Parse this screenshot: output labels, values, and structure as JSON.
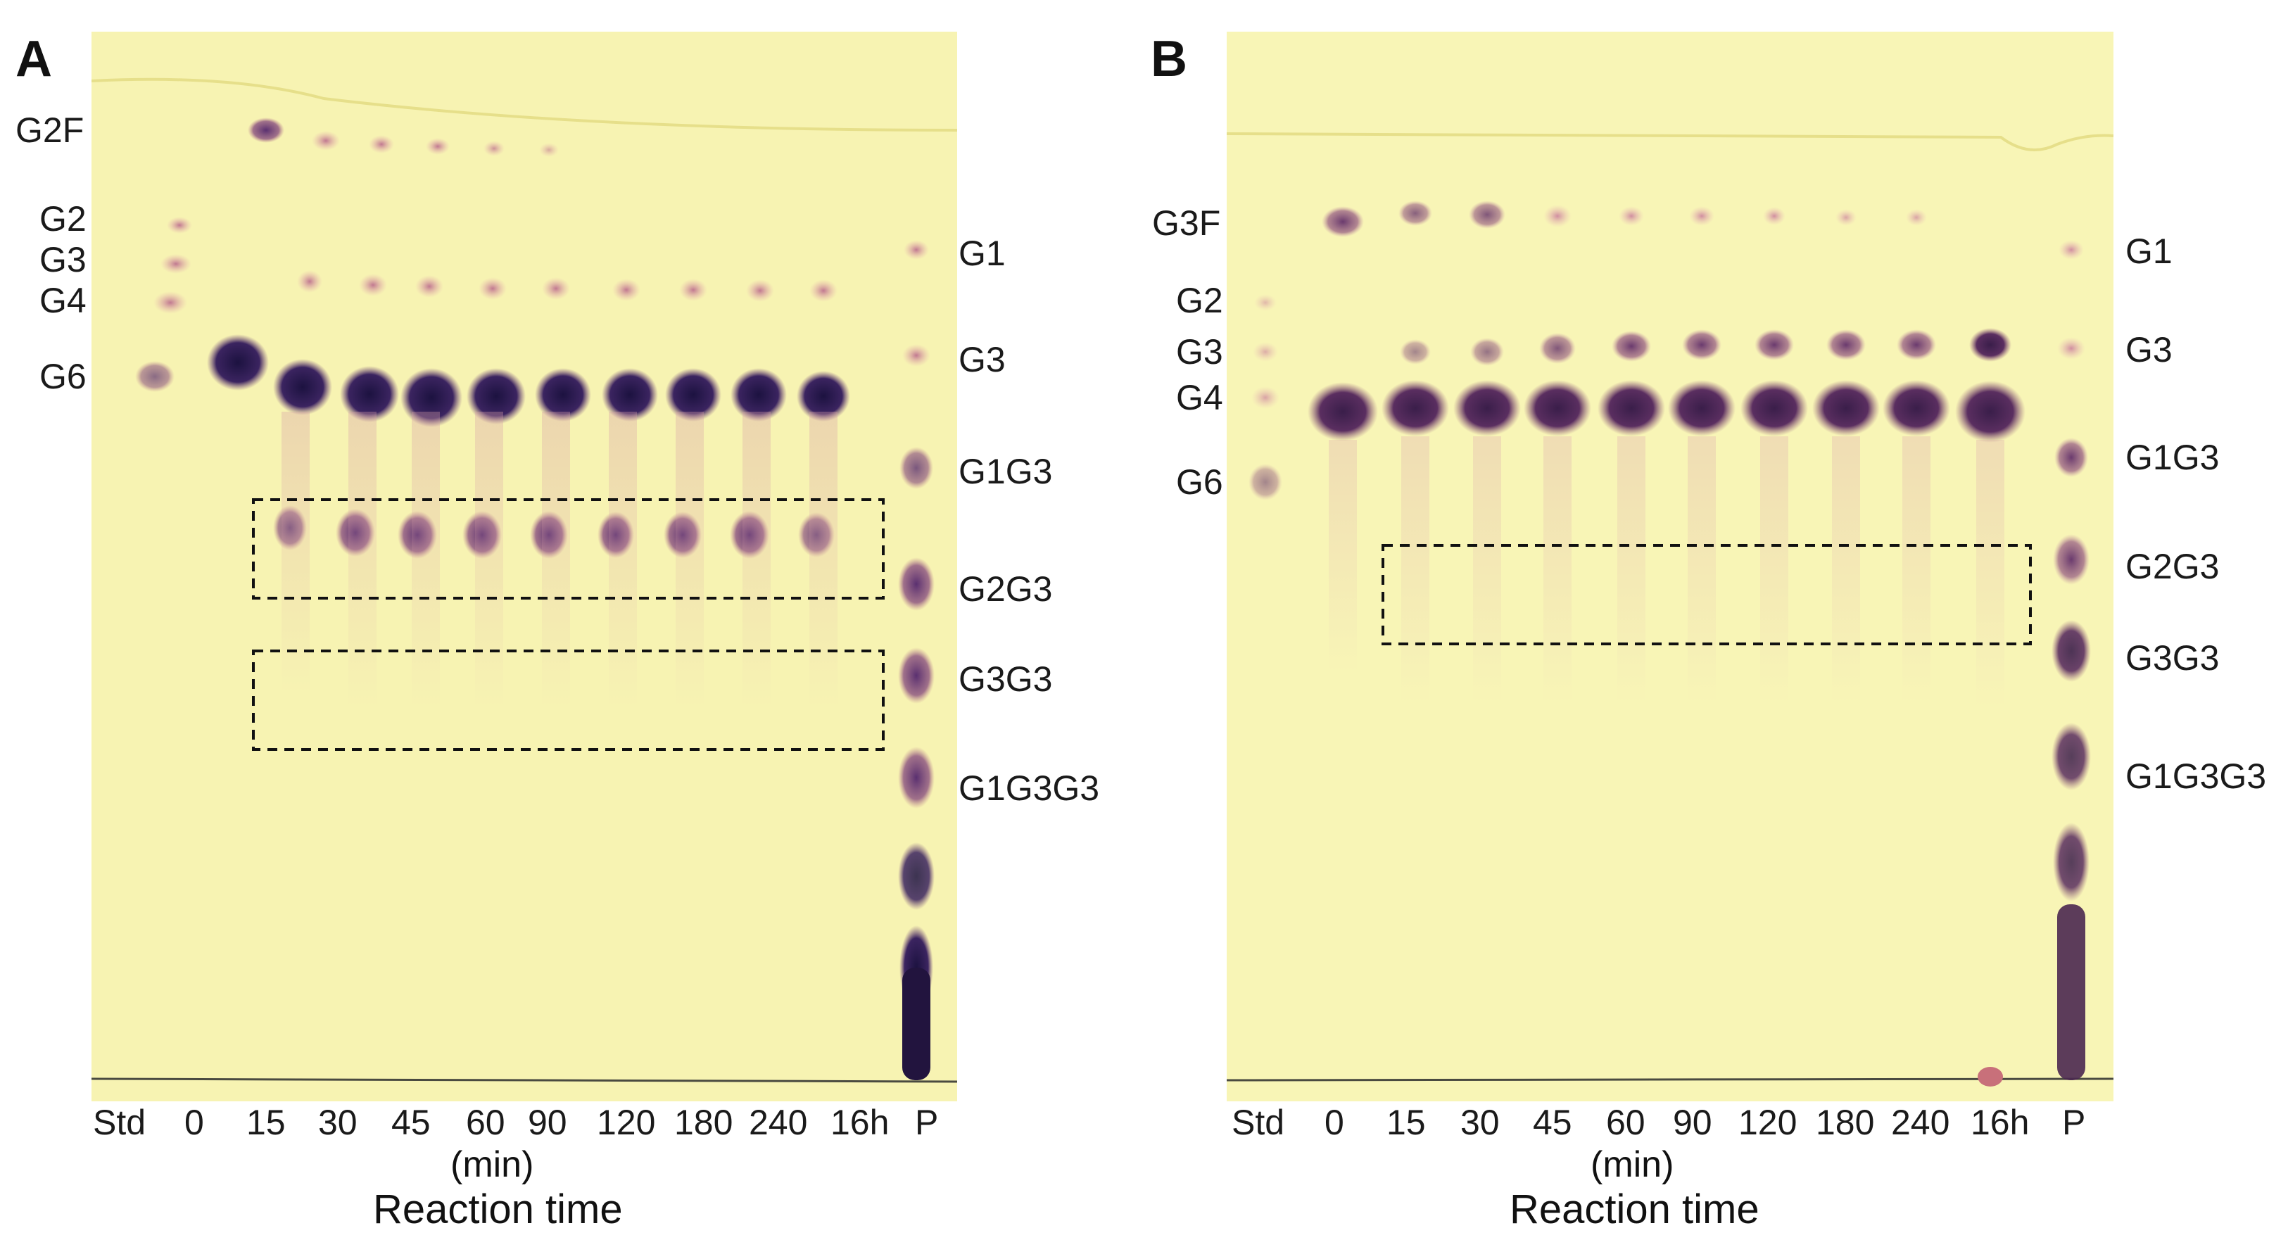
{
  "figure": {
    "panels": [
      {
        "letter": "A",
        "left_labels": [
          "G2F",
          "G2",
          "G3",
          "G4",
          "G6"
        ],
        "right_labels": [
          "G1",
          "G3",
          "G1G3",
          "G2G3",
          "G3G3",
          "G1G3G3"
        ],
        "lane_labels": [
          "Std",
          "0",
          "15",
          "30",
          "45",
          "60",
          "90",
          "120",
          "180",
          "240",
          "16h",
          "P"
        ],
        "unit": "(min)",
        "axis_title": "Reaction time"
      },
      {
        "letter": "B",
        "left_labels": [
          "G3F",
          "G2",
          "G3",
          "G4",
          "G6"
        ],
        "right_labels": [
          "G1",
          "G3",
          "G1G3",
          "G2G3",
          "G3G3",
          "G1G3G3"
        ],
        "lane_labels": [
          "Std",
          "0",
          "15",
          "30",
          "45",
          "60",
          "90",
          "120",
          "180",
          "240",
          "16h",
          "P"
        ],
        "unit": "(min)",
        "axis_title": "Reaction time"
      }
    ]
  },
  "colors": {
    "plate_bg": "#f7f3b0",
    "spot_dark": "#2a1850",
    "spot_mid": "#6a3a78",
    "spot_light": "#d9a0b0",
    "box": "#111111"
  }
}
